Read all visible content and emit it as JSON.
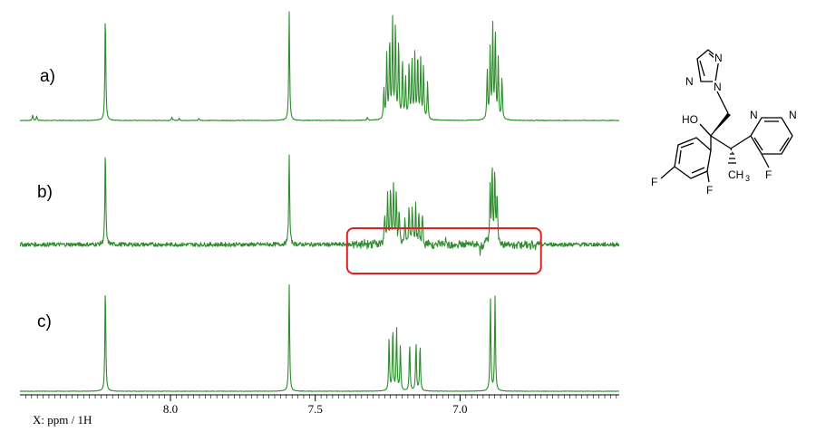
{
  "chart_data": {
    "type": "line",
    "title": "",
    "xlabel": "X: ppm / 1H",
    "ylabel": "",
    "x_axis": {
      "reversed": true,
      "range": [
        8.52,
        6.45
      ],
      "ticks": [
        8.0,
        7.5,
        7.0
      ],
      "tick_labels": [
        "8.0",
        "7.5",
        "7.0"
      ]
    },
    "grid": false,
    "series": [
      {
        "name": "a)",
        "peaks": [
          {
            "ppm": 8.476,
            "height": 0.05
          },
          {
            "ppm": 8.462,
            "height": 0.04
          },
          {
            "ppm": 8.225,
            "height": 1.0
          },
          {
            "ppm": 7.995,
            "height": 0.03
          },
          {
            "ppm": 7.97,
            "height": 0.02
          },
          {
            "ppm": 7.902,
            "height": 0.02
          },
          {
            "ppm": 7.59,
            "height": 1.0
          },
          {
            "ppm": 7.32,
            "height": 0.03
          },
          {
            "ppm": 7.263,
            "height": 0.28
          },
          {
            "ppm": 7.253,
            "height": 0.6
          },
          {
            "ppm": 7.243,
            "height": 0.75
          },
          {
            "ppm": 7.233,
            "height": 0.9
          },
          {
            "ppm": 7.223,
            "height": 0.88
          },
          {
            "ppm": 7.212,
            "height": 0.72
          },
          {
            "ppm": 7.199,
            "height": 0.55
          },
          {
            "ppm": 7.188,
            "height": 0.4
          },
          {
            "ppm": 7.176,
            "height": 0.52
          },
          {
            "ppm": 7.166,
            "height": 0.55
          },
          {
            "ppm": 7.156,
            "height": 0.6
          },
          {
            "ppm": 7.146,
            "height": 0.6
          },
          {
            "ppm": 7.136,
            "height": 0.55
          },
          {
            "ppm": 7.126,
            "height": 0.5
          },
          {
            "ppm": 7.112,
            "height": 0.35
          },
          {
            "ppm": 6.906,
            "height": 0.45
          },
          {
            "ppm": 6.896,
            "height": 0.65
          },
          {
            "ppm": 6.887,
            "height": 0.85
          },
          {
            "ppm": 6.878,
            "height": 0.82
          },
          {
            "ppm": 6.868,
            "height": 0.55
          },
          {
            "ppm": 6.855,
            "height": 0.4
          }
        ],
        "noise": 0.003
      },
      {
        "name": "b)",
        "peaks": [
          {
            "ppm": 8.225,
            "height": 1.0
          },
          {
            "ppm": 7.59,
            "height": 0.95
          },
          {
            "ppm": 7.26,
            "height": 0.32
          },
          {
            "ppm": 7.25,
            "height": 0.55
          },
          {
            "ppm": 7.24,
            "height": 0.6
          },
          {
            "ppm": 7.23,
            "height": 0.6
          },
          {
            "ppm": 7.22,
            "height": 0.52
          },
          {
            "ppm": 7.21,
            "height": 0.38
          },
          {
            "ppm": 7.19,
            "height": 0.25
          },
          {
            "ppm": 7.176,
            "height": 0.38
          },
          {
            "ppm": 7.165,
            "height": 0.4
          },
          {
            "ppm": 7.153,
            "height": 0.42
          },
          {
            "ppm": 7.142,
            "height": 0.35
          },
          {
            "ppm": 7.13,
            "height": 0.3
          },
          {
            "ppm": 6.896,
            "height": 0.6
          },
          {
            "ppm": 6.889,
            "height": 0.78
          },
          {
            "ppm": 6.88,
            "height": 0.78
          },
          {
            "ppm": 6.872,
            "height": 0.55
          },
          {
            "ppm": 6.93,
            "height": -0.12
          },
          {
            "ppm": 6.92,
            "height": -0.1
          },
          {
            "ppm": 6.91,
            "height": 0.08
          },
          {
            "ppm": 7.3,
            "height": 0.05
          },
          {
            "ppm": 7.05,
            "height": 0.04
          }
        ],
        "noise": 0.022
      },
      {
        "name": "c)",
        "peaks": [
          {
            "ppm": 8.225,
            "height": 1.0
          },
          {
            "ppm": 7.59,
            "height": 1.0
          },
          {
            "ppm": 7.245,
            "height": 0.5
          },
          {
            "ppm": 7.232,
            "height": 0.6
          },
          {
            "ppm": 7.219,
            "height": 0.58
          },
          {
            "ppm": 7.206,
            "height": 0.42
          },
          {
            "ppm": 7.174,
            "height": 0.45
          },
          {
            "ppm": 7.152,
            "height": 0.46
          },
          {
            "ppm": 7.138,
            "height": 0.44
          },
          {
            "ppm": 6.895,
            "height": 0.88
          },
          {
            "ppm": 6.879,
            "height": 0.88
          }
        ],
        "noise": 0.002
      }
    ],
    "annotations": [
      {
        "type": "highlight-box",
        "color": "#e0201e",
        "from_ppm": 7.39,
        "to_ppm": 6.72,
        "trace": "b)"
      }
    ]
  },
  "molecule": {
    "atoms": {
      "N_triazole_top": "N",
      "N_triazole_left": "N",
      "N_triazole_attach": "N",
      "OH": "HO",
      "N_pyrimidine_a": "N",
      "N_pyrimidine_b": "N",
      "F_phenyl_para": "F",
      "F_phenyl_ortho": "F",
      "CH3": "CH",
      "CH3_sub": "3",
      "F_pyrimidine": "F"
    }
  }
}
